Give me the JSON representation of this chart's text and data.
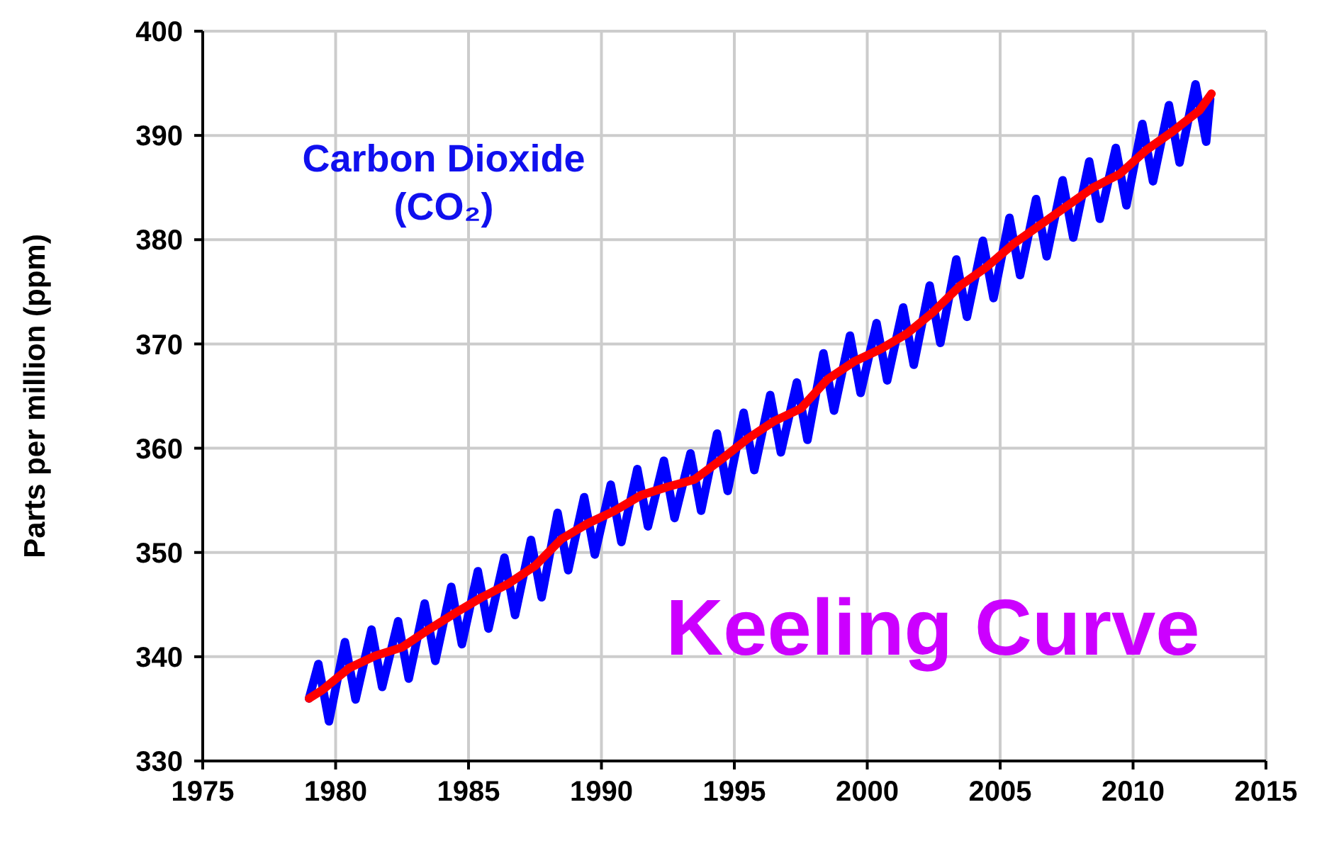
{
  "chart_data": {
    "type": "line",
    "ylabel": "Parts per million (ppm)",
    "annotations": [
      "Carbon Dioxide (CO₂)",
      "Keeling Curve"
    ],
    "xlim": [
      1975,
      2015
    ],
    "xticks": [
      1975,
      1980,
      1985,
      1990,
      1995,
      2000,
      2005,
      2010,
      2015
    ],
    "ylim": [
      330,
      400
    ],
    "yticks": [
      330,
      340,
      350,
      360,
      370,
      380,
      390,
      400
    ],
    "grid": true,
    "marker": "none",
    "line_style": "solid",
    "series": [
      {
        "type": "line",
        "color": "#0000ff",
        "x": [
          1979.0,
          1979.35,
          1979.75,
          1980.35,
          1980.75,
          1981.35,
          1981.75,
          1982.35,
          1982.75,
          1983.35,
          1983.75,
          1984.35,
          1984.75,
          1985.35,
          1985.75,
          1986.35,
          1986.75,
          1987.35,
          1987.75,
          1988.35,
          1988.75,
          1989.35,
          1989.75,
          1990.35,
          1990.75,
          1991.35,
          1991.75,
          1992.35,
          1992.75,
          1993.35,
          1993.75,
          1994.35,
          1994.75,
          1995.35,
          1995.75,
          1996.35,
          1996.75,
          1997.35,
          1997.75,
          1998.35,
          1998.75,
          1999.35,
          1999.75,
          2000.35,
          2000.75,
          2001.35,
          2001.75,
          2002.35,
          2002.75,
          2003.35,
          2003.75,
          2004.35,
          2004.75,
          2005.35,
          2005.75,
          2006.35,
          2006.75,
          2007.35,
          2007.75,
          2008.35,
          2008.75,
          2009.35,
          2009.75,
          2010.35,
          2010.75,
          2011.35,
          2011.75,
          2012.35,
          2012.75,
          2012.9
        ],
        "values": [
          336.0,
          339.3,
          333.8,
          341.4,
          335.9,
          342.6,
          337.1,
          343.4,
          337.9,
          345.1,
          339.6,
          346.7,
          341.2,
          348.2,
          342.7,
          349.5,
          344.0,
          351.2,
          345.7,
          353.8,
          348.3,
          355.3,
          349.8,
          356.5,
          351.0,
          358.0,
          352.5,
          358.8,
          353.3,
          359.5,
          354.0,
          361.4,
          355.9,
          363.4,
          357.9,
          365.1,
          359.6,
          366.3,
          360.8,
          369.1,
          363.6,
          370.8,
          365.3,
          372.0,
          366.5,
          373.5,
          368.0,
          375.6,
          370.1,
          378.1,
          372.6,
          379.9,
          374.4,
          382.1,
          376.6,
          383.9,
          378.4,
          385.7,
          380.2,
          387.5,
          382.0,
          388.8,
          383.3,
          391.1,
          385.6,
          392.9,
          387.4,
          394.9,
          389.4,
          393.5
        ]
      },
      {
        "type": "line",
        "color": "#ff0000",
        "x": [
          1979.0,
          1979.5,
          1980.5,
          1981.5,
          1982.5,
          1983.5,
          1984.5,
          1985.5,
          1986.5,
          1987.5,
          1988.5,
          1989.5,
          1990.5,
          1991.5,
          1992.5,
          1993.5,
          1994.5,
          1995.5,
          1996.5,
          1997.5,
          1998.5,
          1999.5,
          2000.5,
          2001.5,
          2002.5,
          2003.5,
          2004.5,
          2005.5,
          2006.5,
          2007.5,
          2008.5,
          2009.5,
          2010.5,
          2011.5,
          2012.5,
          2012.95
        ],
        "values": [
          336.0,
          336.8,
          338.9,
          340.1,
          340.9,
          342.6,
          344.2,
          345.7,
          347.0,
          348.7,
          351.3,
          352.8,
          354.0,
          355.5,
          356.3,
          357.0,
          358.9,
          360.9,
          362.6,
          363.8,
          366.6,
          368.3,
          369.5,
          371.0,
          373.1,
          375.6,
          377.4,
          379.6,
          381.4,
          383.2,
          385.0,
          386.3,
          388.6,
          390.4,
          392.4,
          394.0
        ]
      }
    ]
  }
}
